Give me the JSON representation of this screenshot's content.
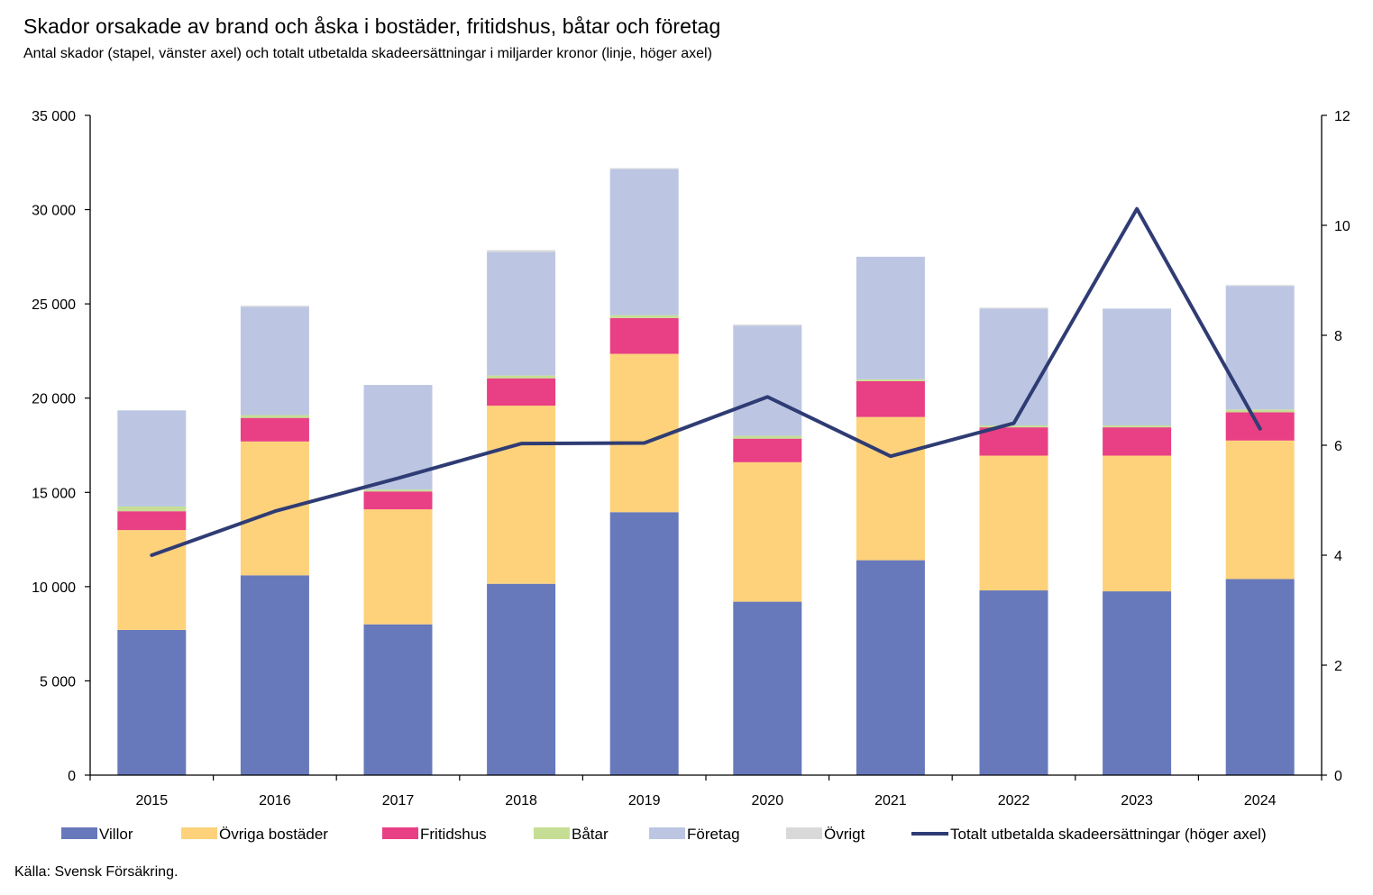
{
  "title": "Skador orsakade av brand och åska i bostäder, fritidshus, båtar och företag",
  "subtitle": "Antal skador (stapel, vänster axel) och totalt utbetalda skadeersättningar i miljarder kronor (linje, höger axel)",
  "source": "Källa: Svensk Försäkring.",
  "colors": {
    "villor": "#6779BB",
    "ovriga": "#FDD27B",
    "fritidshus": "#E93F84",
    "batar": "#C6DE94",
    "foretag": "#BCC6E3",
    "ovrigt": "#D9D9D9",
    "line": "#2F3C74"
  },
  "chart_data": {
    "type": "bar",
    "stacked": true,
    "categories": [
      "2015",
      "2016",
      "2017",
      "2018",
      "2019",
      "2020",
      "2021",
      "2022",
      "2023",
      "2024"
    ],
    "y_left": {
      "min": 0,
      "max": 35000,
      "step": 5000,
      "tick_labels": [
        "0",
        "5 000",
        "10 000",
        "15 000",
        "20 000",
        "25 000",
        "30 000",
        "35 000"
      ]
    },
    "y_right": {
      "min": 0,
      "max": 12,
      "step": 2,
      "tick_labels": [
        "0",
        "2",
        "4",
        "6",
        "8",
        "10",
        "12"
      ]
    },
    "series": [
      {
        "name": "Villor",
        "color_key": "villor",
        "values": [
          7700,
          10600,
          8000,
          10150,
          13950,
          9200,
          11400,
          9800,
          9750,
          10400
        ]
      },
      {
        "name": "Övriga bostäder",
        "color_key": "ovriga",
        "values": [
          5300,
          7100,
          6100,
          9450,
          8400,
          7400,
          7600,
          7150,
          7200,
          7350
        ]
      },
      {
        "name": "Fritidshus",
        "color_key": "fritidshus",
        "values": [
          1000,
          1250,
          950,
          1450,
          1900,
          1250,
          1900,
          1500,
          1500,
          1500
        ]
      },
      {
        "name": "Båtar",
        "color_key": "batar",
        "values": [
          250,
          150,
          100,
          150,
          150,
          150,
          100,
          100,
          100,
          150
        ]
      },
      {
        "name": "Företag",
        "color_key": "foretag",
        "values": [
          5100,
          5750,
          5550,
          6550,
          7750,
          5850,
          6500,
          6200,
          6200,
          6550
        ]
      },
      {
        "name": "Övrigt",
        "color_key": "ovrigt",
        "values": [
          0,
          50,
          0,
          100,
          50,
          50,
          0,
          50,
          0,
          50
        ]
      }
    ],
    "line": {
      "name": "Totalt utbetalda skadeersättningar (höger axel)",
      "axis": "right",
      "values": [
        4.0,
        4.8,
        5.4,
        6.03,
        6.04,
        6.88,
        5.8,
        6.4,
        10.3,
        6.3
      ]
    },
    "legend_position": "bottom",
    "grid": false
  }
}
